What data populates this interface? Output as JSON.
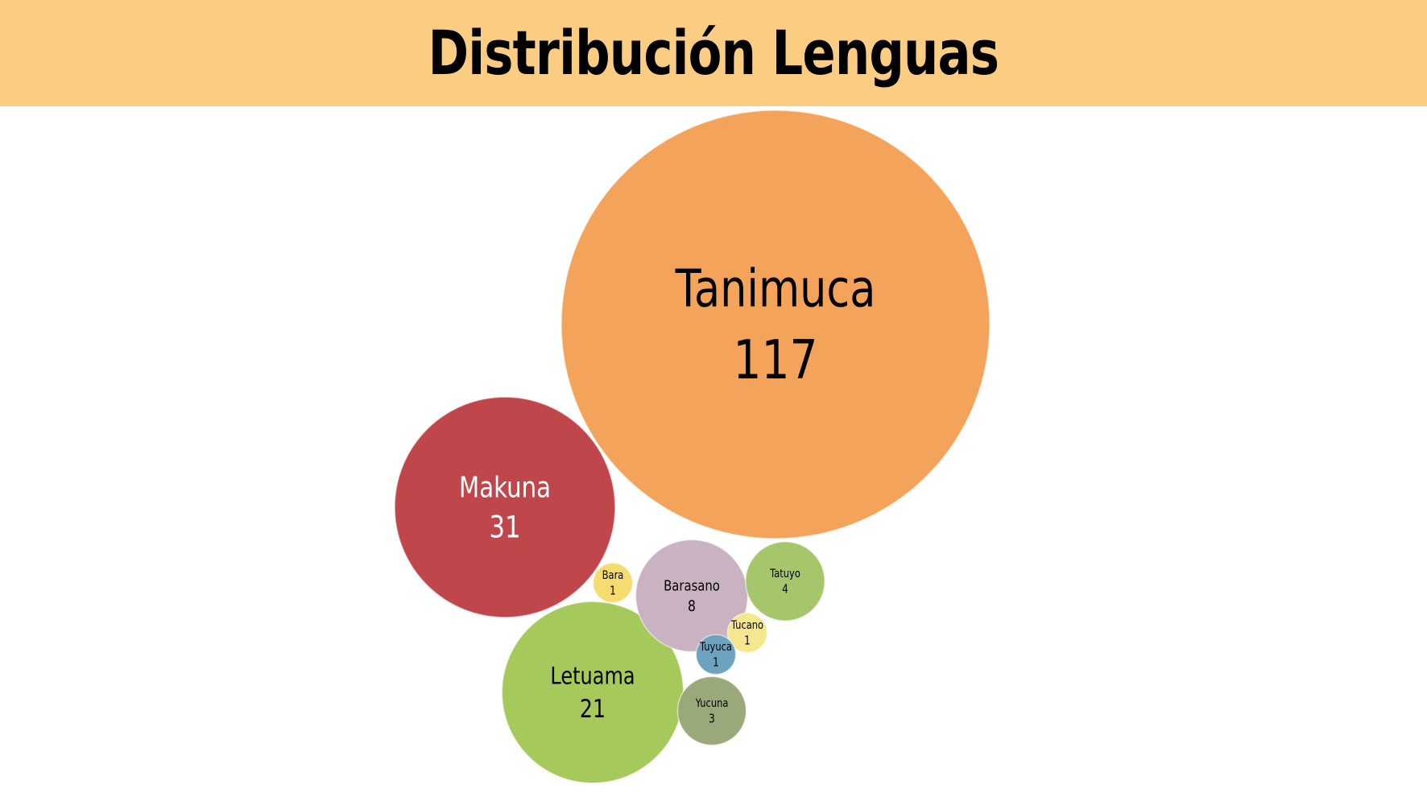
{
  "title": "Distribución Lenguas",
  "chart_data": {
    "type": "bubble",
    "title": "Distribución Lenguas",
    "series": [
      {
        "name": "Tanimuca",
        "value": 117,
        "color": "#F3A45A",
        "text_color": "#000000"
      },
      {
        "name": "Makuna",
        "value": 31,
        "color": "#BF464B",
        "text_color": "#ffffff"
      },
      {
        "name": "Letuama",
        "value": 21,
        "color": "#A6C95C",
        "text_color": "#000000"
      },
      {
        "name": "Barasano",
        "value": 8,
        "color": "#C9B3C3",
        "text_color": "#000000"
      },
      {
        "name": "Tatuyo",
        "value": 4,
        "color": "#A5C66A",
        "text_color": "#000000"
      },
      {
        "name": "Yucuna",
        "value": 3,
        "color": "#9AA97A",
        "text_color": "#000000"
      },
      {
        "name": "Bara",
        "value": 1,
        "color": "#F6DC6F",
        "text_color": "#000000"
      },
      {
        "name": "Tucano",
        "value": 1,
        "color": "#F5E790",
        "text_color": "#000000"
      },
      {
        "name": "Tuyuca",
        "value": 1,
        "color": "#6EA3BF",
        "text_color": "#000000"
      }
    ]
  }
}
